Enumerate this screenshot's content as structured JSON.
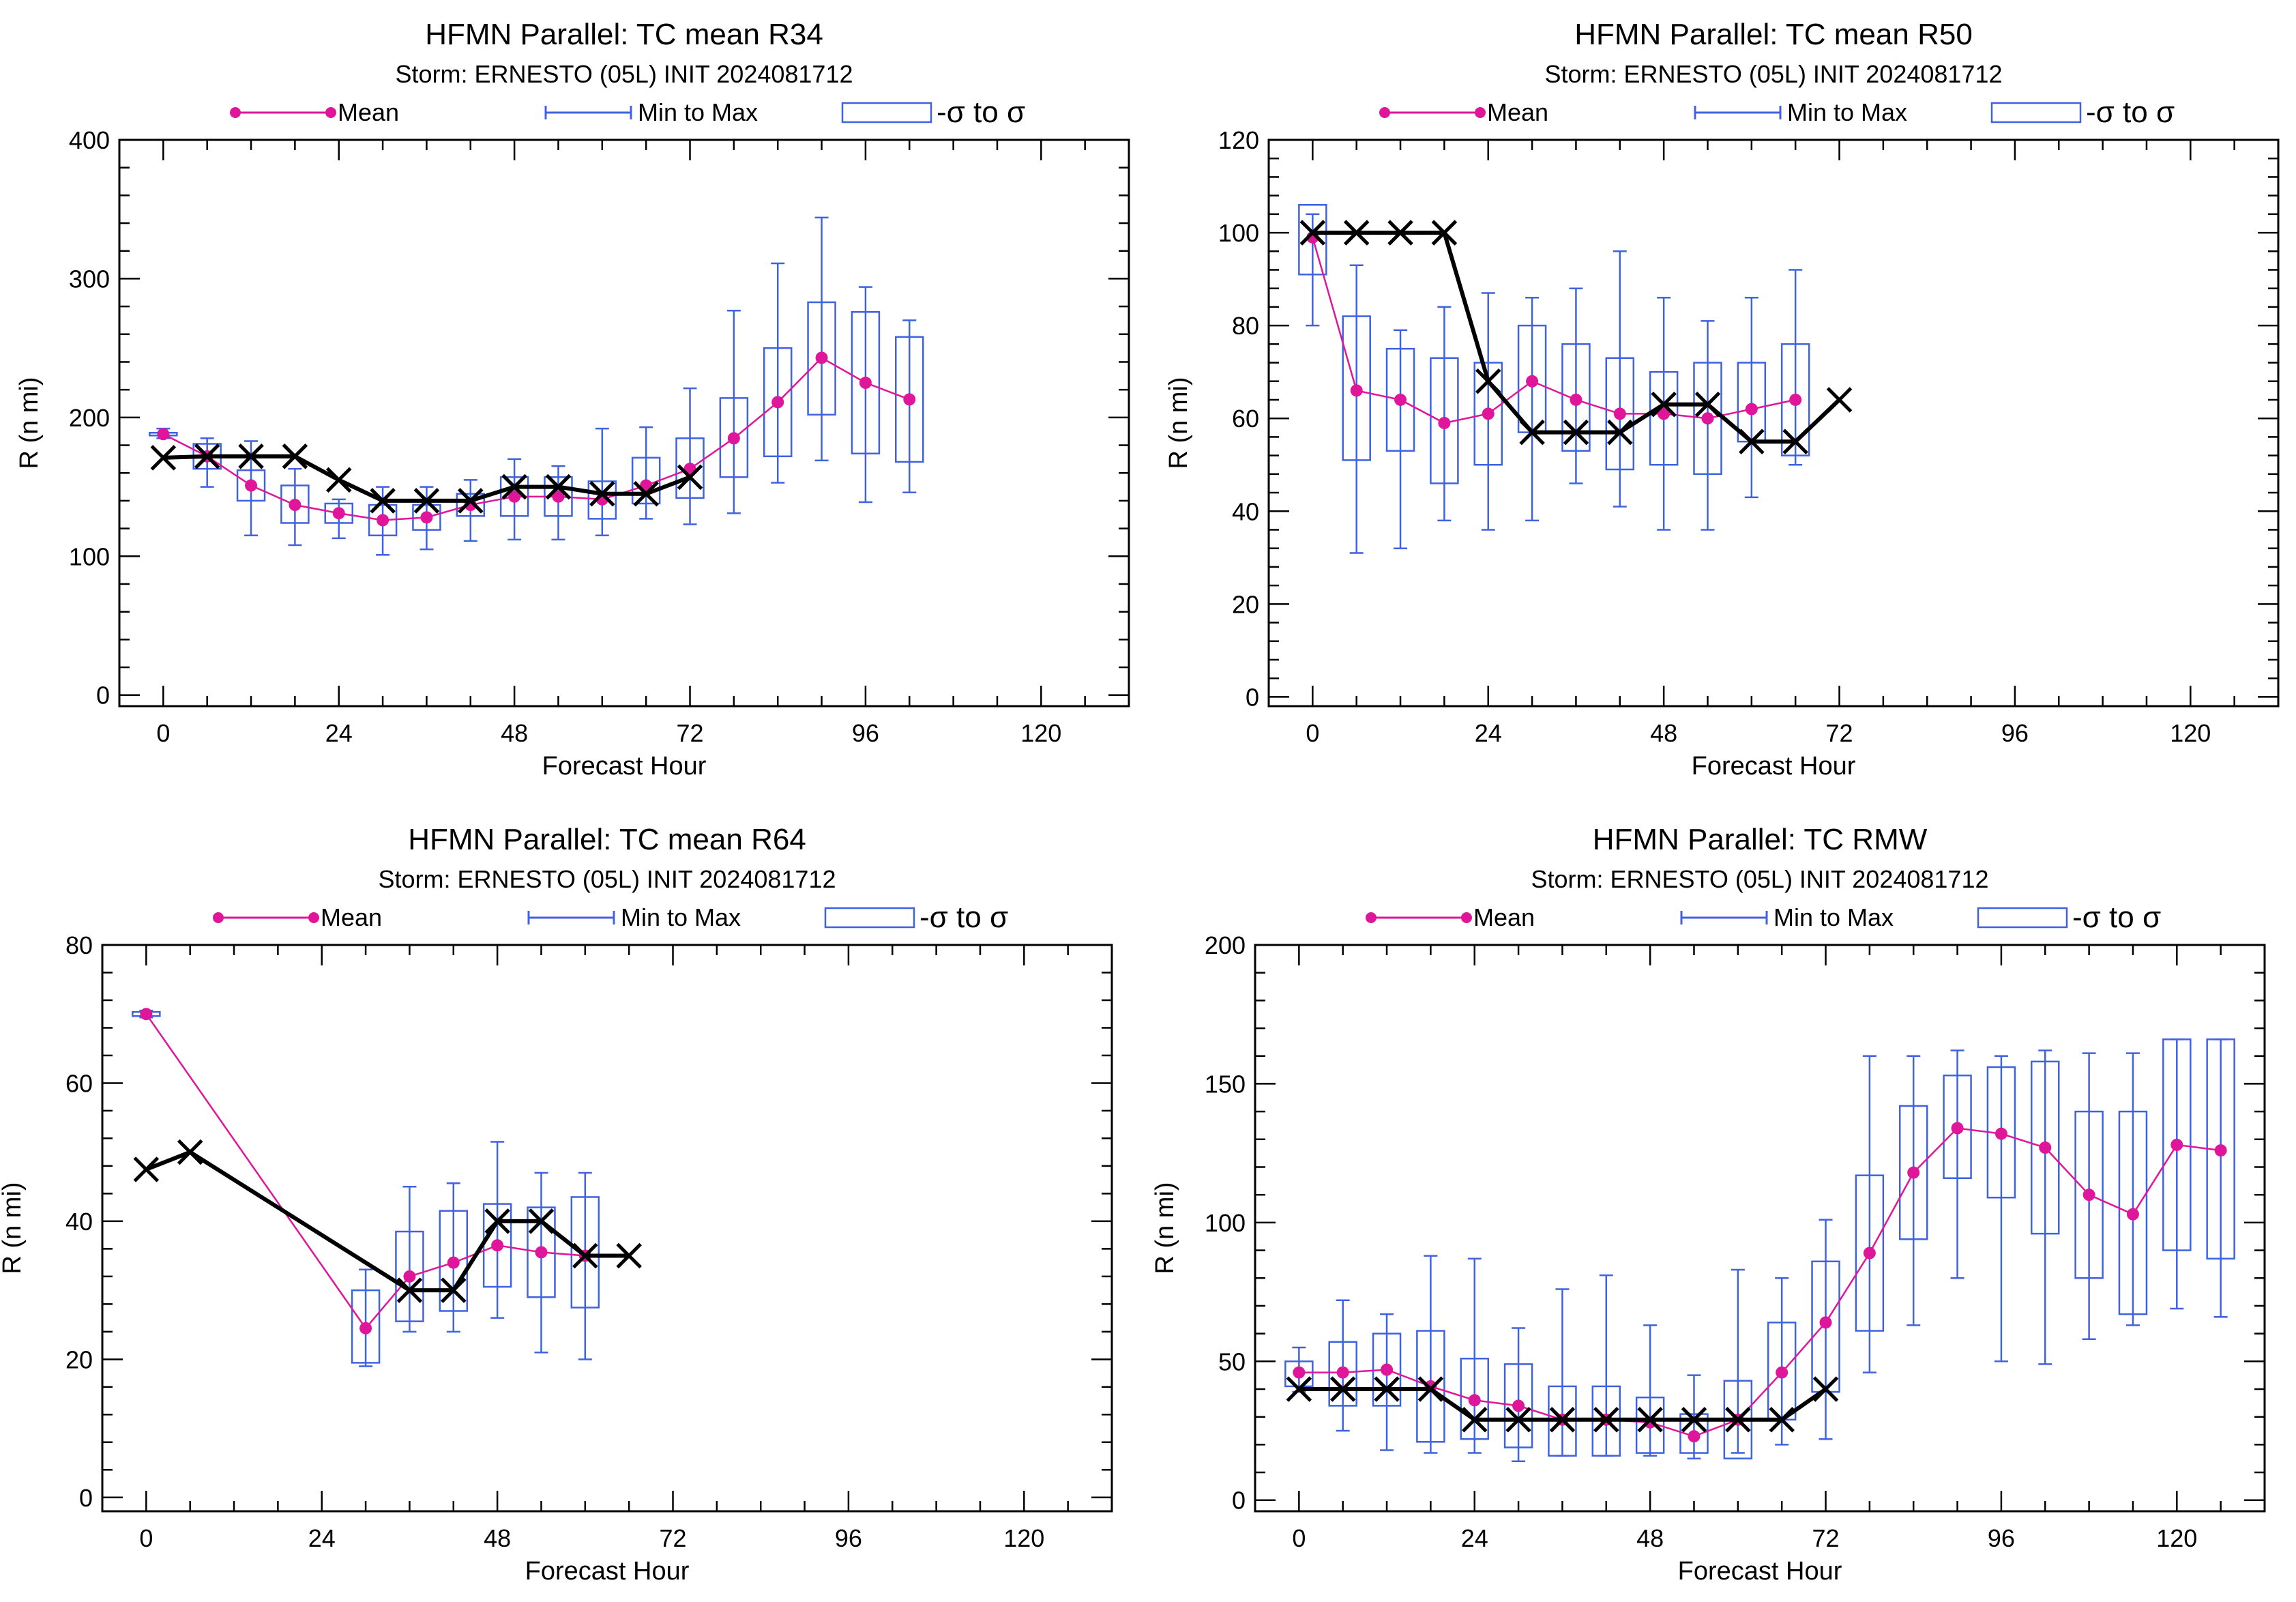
{
  "colors": {
    "mean": "#e0169a",
    "minmax": "#3f63e0",
    "sigma": "#3f63e0",
    "observed": "#000000",
    "axis": "#000000"
  },
  "legend": {
    "mean": "Mean",
    "minmax": "Min to Max",
    "sigma": "-σ to σ"
  },
  "chart_data": [
    {
      "type": "line",
      "title": "HFMN Parallel: TC mean R34",
      "subtitle": "Storm: ERNESTO (05L) INIT 2024081712",
      "xlabel": "Forecast Hour",
      "ylabel": "R (n mi)",
      "xlim": [
        -6,
        132
      ],
      "ylim": [
        -8,
        400
      ],
      "xticks": [
        0,
        24,
        48,
        72,
        96,
        120
      ],
      "yticks": [
        0,
        100,
        200,
        300,
        400
      ],
      "series": [
        {
          "name": "Mean",
          "x": [
            0,
            6,
            12,
            18,
            24,
            30,
            36,
            42,
            48,
            54,
            60,
            66,
            72,
            78,
            84,
            90,
            96,
            102
          ],
          "y": [
            188,
            172,
            151,
            137,
            131,
            126,
            128,
            137,
            143,
            143,
            141,
            151,
            163,
            185,
            211,
            243,
            225,
            213
          ]
        },
        {
          "name": "Min to Max",
          "x": [
            0,
            6,
            12,
            18,
            24,
            30,
            36,
            42,
            48,
            54,
            60,
            66,
            72,
            78,
            84,
            90,
            96,
            102
          ],
          "min": [
            185,
            150,
            115,
            108,
            113,
            101,
            105,
            111,
            112,
            112,
            115,
            127,
            123,
            131,
            153,
            169,
            139,
            146
          ],
          "max": [
            192,
            185,
            183,
            163,
            141,
            150,
            150,
            155,
            170,
            165,
            192,
            193,
            221,
            277,
            311,
            344,
            294,
            270
          ]
        },
        {
          "name": "-σ to σ",
          "x": [
            0,
            6,
            12,
            18,
            24,
            30,
            36,
            42,
            48,
            54,
            60,
            66,
            72,
            78,
            84,
            90,
            96,
            102
          ],
          "low": [
            187,
            163,
            140,
            124,
            124,
            115,
            119,
            129,
            129,
            129,
            127,
            138,
            142,
            157,
            172,
            202,
            174,
            168
          ],
          "high": [
            189,
            181,
            162,
            151,
            138,
            137,
            137,
            145,
            157,
            157,
            154,
            171,
            185,
            214,
            250,
            283,
            276,
            258
          ]
        },
        {
          "name": "observed",
          "x": [
            0,
            6,
            12,
            18,
            24,
            30,
            36,
            42,
            48,
            54,
            60,
            66,
            72
          ],
          "y": [
            171,
            172,
            172,
            172,
            155,
            140,
            140,
            140,
            150,
            150,
            145,
            145,
            157
          ]
        }
      ]
    },
    {
      "type": "line",
      "title": "HFMN Parallel: TC mean R50",
      "subtitle": "Storm: ERNESTO (05L) INIT 2024081712",
      "xlabel": "Forecast Hour",
      "ylabel": "R (n mi)",
      "xlim": [
        -6,
        132
      ],
      "ylim": [
        -2,
        120
      ],
      "xticks": [
        0,
        24,
        48,
        72,
        96,
        120
      ],
      "yticks": [
        0,
        20,
        40,
        60,
        80,
        100,
        120
      ],
      "series": [
        {
          "name": "Mean",
          "x": [
            0,
            6,
            12,
            18,
            24,
            30,
            36,
            42,
            48,
            54,
            60,
            66
          ],
          "y": [
            99,
            66,
            64,
            59,
            61,
            68,
            64,
            61,
            61,
            60,
            62,
            64
          ]
        },
        {
          "name": "Min to Max",
          "x": [
            0,
            6,
            12,
            18,
            24,
            30,
            36,
            42,
            48,
            54,
            60,
            66
          ],
          "min": [
            80,
            31,
            32,
            38,
            36,
            38,
            46,
            41,
            36,
            36,
            43,
            50
          ],
          "max": [
            104,
            93,
            79,
            84,
            87,
            86,
            88,
            96,
            86,
            81,
            86,
            92
          ]
        },
        {
          "name": "-σ to σ",
          "x": [
            0,
            6,
            12,
            18,
            24,
            30,
            36,
            42,
            48,
            54,
            60,
            66
          ],
          "low": [
            91,
            51,
            53,
            46,
            50,
            57,
            53,
            49,
            50,
            48,
            55,
            52
          ],
          "high": [
            106,
            82,
            75,
            73,
            72,
            80,
            76,
            73,
            70,
            72,
            72,
            76
          ]
        },
        {
          "name": "observed",
          "x": [
            0,
            6,
            12,
            18,
            24,
            30,
            36,
            42,
            48,
            54,
            60,
            66,
            72
          ],
          "y": [
            100,
            100,
            100,
            100,
            68,
            57,
            57,
            57,
            63,
            63,
            55,
            55,
            64
          ]
        }
      ]
    },
    {
      "type": "line",
      "title": "HFMN Parallel: TC mean R64",
      "subtitle": "Storm: ERNESTO (05L) INIT 2024081712",
      "xlabel": "Forecast Hour",
      "ylabel": "R (n mi)",
      "xlim": [
        -6,
        132
      ],
      "ylim": [
        -2,
        80
      ],
      "xticks": [
        0,
        24,
        48,
        72,
        96,
        120
      ],
      "yticks": [
        0,
        20,
        40,
        60,
        80
      ],
      "series": [
        {
          "name": "Mean",
          "x": [
            0,
            30,
            36,
            42,
            48,
            54,
            60
          ],
          "y": [
            70,
            24.5,
            32,
            34,
            36.5,
            35.5,
            35
          ]
        },
        {
          "name": "Min to Max",
          "x": [
            0,
            30,
            36,
            42,
            48,
            54,
            60
          ],
          "min": [
            69.5,
            19,
            24,
            24,
            26,
            21,
            20
          ],
          "max": [
            70.5,
            33,
            45,
            45.5,
            51.5,
            47,
            47
          ]
        },
        {
          "name": "-σ to σ",
          "x": [
            0,
            30,
            36,
            42,
            48,
            54,
            60
          ],
          "low": [
            69.7,
            19.5,
            25.5,
            27,
            30.5,
            29,
            27.5
          ],
          "high": [
            70.3,
            30,
            38.5,
            41.5,
            42.5,
            42,
            43.5
          ]
        },
        {
          "name": "observed",
          "x": [
            0,
            6,
            36,
            42,
            48,
            54,
            60,
            66
          ],
          "y": [
            47.5,
            50,
            30,
            30,
            40,
            40,
            35,
            35
          ]
        }
      ]
    },
    {
      "type": "line",
      "title": "HFMN Parallel: TC RMW",
      "subtitle": "Storm: ERNESTO (05L) INIT 2024081712",
      "xlabel": "Forecast Hour",
      "ylabel": "R (n mi)",
      "xlim": [
        -6,
        132
      ],
      "ylim": [
        -4,
        200
      ],
      "xticks": [
        0,
        24,
        48,
        72,
        96,
        120
      ],
      "yticks": [
        0,
        50,
        100,
        150,
        200
      ],
      "series": [
        {
          "name": "Mean",
          "x": [
            0,
            6,
            12,
            18,
            24,
            30,
            36,
            42,
            48,
            54,
            60,
            66,
            72,
            78,
            84,
            90,
            96,
            102,
            108,
            114,
            120,
            126
          ],
          "y": [
            46,
            46,
            47,
            41,
            36,
            34,
            29,
            29,
            28,
            23,
            29,
            46,
            64,
            89,
            118,
            134,
            132,
            127,
            110,
            103,
            128,
            126
          ]
        },
        {
          "name": "Min to Max",
          "x": [
            0,
            6,
            12,
            18,
            24,
            30,
            36,
            42,
            48,
            54,
            60,
            66,
            72,
            78,
            84,
            90,
            96,
            102,
            108,
            114,
            120,
            126
          ],
          "min": [
            39,
            25,
            18,
            17,
            17,
            14,
            16,
            16,
            16,
            15,
            17,
            20,
            22,
            46,
            63,
            80,
            50,
            49,
            58,
            63,
            69,
            66
          ],
          "max": [
            55,
            72,
            67,
            88,
            87,
            62,
            76,
            81,
            63,
            45,
            83,
            80,
            101,
            160,
            160,
            162,
            160,
            162,
            161,
            161,
            166,
            166
          ]
        },
        {
          "name": "-σ to σ",
          "x": [
            0,
            6,
            12,
            18,
            24,
            30,
            36,
            42,
            48,
            54,
            60,
            66,
            72,
            78,
            84,
            90,
            96,
            102,
            108,
            114,
            120,
            126
          ],
          "low": [
            41,
            34,
            34,
            21,
            22,
            19,
            16,
            16,
            17,
            17,
            15,
            29,
            39,
            61,
            94,
            116,
            109,
            96,
            80,
            67,
            90,
            87
          ],
          "high": [
            50,
            57,
            60,
            61,
            51,
            49,
            41,
            41,
            37,
            31,
            43,
            64,
            86,
            117,
            142,
            153,
            156,
            158,
            140,
            140,
            166,
            166
          ]
        },
        {
          "name": "observed",
          "x": [
            0,
            6,
            12,
            18,
            24,
            30,
            36,
            42,
            48,
            54,
            60,
            66,
            72
          ],
          "y": [
            40,
            40,
            40,
            40,
            29,
            29,
            29,
            29,
            29,
            29,
            29,
            29,
            40
          ]
        }
      ]
    }
  ]
}
